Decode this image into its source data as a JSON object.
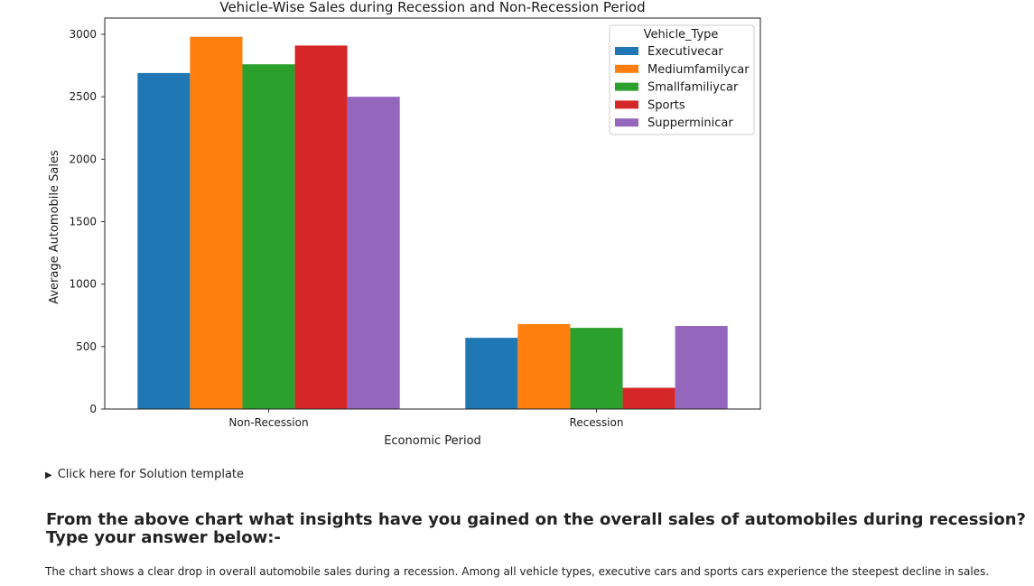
{
  "chart_data": {
    "type": "bar",
    "title": "Vehicle-Wise Sales during Recession and Non-Recession Period",
    "xlabel": "Economic Period",
    "ylabel": "Average Automobile Sales",
    "categories": [
      "Non-Recession",
      "Recession"
    ],
    "ylim": [
      0,
      3130
    ],
    "yticks": [
      0,
      500,
      1000,
      1500,
      2000,
      2500,
      3000
    ],
    "grid": false,
    "legend_title": "Vehicle_Type",
    "legend_placement": "top-right",
    "series": [
      {
        "name": "Executivecar",
        "color": "#1f77b4",
        "values": [
          2690,
          570
        ]
      },
      {
        "name": "Mediumfamilycar",
        "color": "#ff7f0e",
        "values": [
          2980,
          680
        ]
      },
      {
        "name": "Smallfamiliycar",
        "color": "#2ca02c",
        "values": [
          2760,
          650
        ]
      },
      {
        "name": "Sports",
        "color": "#d62728",
        "values": [
          2910,
          170
        ]
      },
      {
        "name": "Supperminicar",
        "color": "#9467bd",
        "values": [
          2500,
          665
        ]
      }
    ]
  },
  "solution_toggle": "Click here for Solution template",
  "question": {
    "line1": "From the above chart what insights have you gained on the overall sales of automobiles during recession?",
    "line2": "Type your answer below:-"
  },
  "answer": "The chart shows a clear drop in overall automobile sales during a recession. Among all vehicle types, executive cars and sports cars experience the steepest decline in sales."
}
